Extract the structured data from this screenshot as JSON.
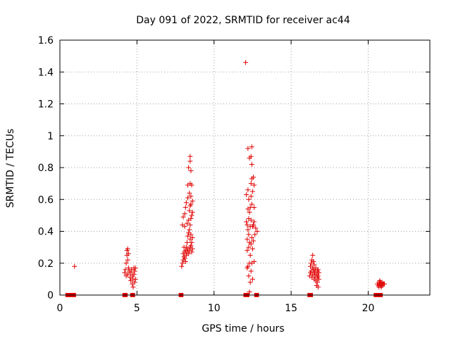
{
  "chart_data": {
    "type": "scatter",
    "title": "Day 091 of 2022, SRMTID for receiver ac44",
    "xlabel": "GPS time / hours",
    "ylabel": "SRMTID / TECUs",
    "xlim": [
      0,
      24
    ],
    "ylim": [
      0,
      1.6
    ],
    "xticks": [
      0,
      5,
      10,
      15,
      20
    ],
    "yticks": [
      0,
      0.2,
      0.4,
      0.6,
      0.8,
      1,
      1.2,
      1.4,
      1.6
    ],
    "xtick_labels": [
      "0",
      "5",
      "10",
      "15",
      "20"
    ],
    "ytick_labels": [
      "0",
      "0.2",
      "0.4",
      "0.6",
      "0.8",
      "1",
      "1.2",
      "1.4",
      "1.6"
    ],
    "grid": true,
    "color": "#e00000",
    "marker": "plus",
    "series": [
      {
        "points": [
          [
            0.95,
            0.18
          ],
          [
            4.2,
            0.14
          ],
          [
            4.25,
            0.16
          ],
          [
            4.3,
            0.12
          ],
          [
            4.3,
            0.2
          ],
          [
            4.35,
            0.25
          ],
          [
            4.35,
            0.28
          ],
          [
            4.4,
            0.29
          ],
          [
            4.4,
            0.22
          ],
          [
            4.4,
            0.13
          ],
          [
            4.45,
            0.17
          ],
          [
            4.45,
            0.26
          ],
          [
            4.5,
            0.15
          ],
          [
            4.55,
            0.11
          ],
          [
            4.6,
            0.09
          ],
          [
            4.6,
            0.14
          ],
          [
            4.65,
            0.16
          ],
          [
            4.7,
            0.07
          ],
          [
            4.7,
            0.12
          ],
          [
            4.75,
            0.1
          ],
          [
            4.75,
            0.05
          ],
          [
            4.8,
            0.17
          ],
          [
            4.8,
            0.13
          ],
          [
            4.85,
            0.08
          ],
          [
            4.85,
            0.15
          ],
          [
            4.9,
            0.1
          ],
          [
            4.9,
            0.17
          ],
          [
            7.9,
            0.18
          ],
          [
            7.95,
            0.2
          ],
          [
            7.95,
            0.44
          ],
          [
            8.0,
            0.22
          ],
          [
            8.0,
            0.49
          ],
          [
            8.0,
            0.26
          ],
          [
            8.05,
            0.24
          ],
          [
            8.05,
            0.3
          ],
          [
            8.1,
            0.23
          ],
          [
            8.1,
            0.27
          ],
          [
            8.1,
            0.43
          ],
          [
            8.1,
            0.51
          ],
          [
            8.15,
            0.21
          ],
          [
            8.15,
            0.28
          ],
          [
            8.15,
            0.55
          ],
          [
            8.2,
            0.25
          ],
          [
            8.2,
            0.3
          ],
          [
            8.2,
            0.58
          ],
          [
            8.25,
            0.27
          ],
          [
            8.25,
            0.33
          ],
          [
            8.25,
            0.45
          ],
          [
            8.3,
            0.29
          ],
          [
            8.3,
            0.37
          ],
          [
            8.3,
            0.61
          ],
          [
            8.3,
            0.69
          ],
          [
            8.35,
            0.26
          ],
          [
            8.35,
            0.39
          ],
          [
            8.35,
            0.47
          ],
          [
            8.35,
            0.8
          ],
          [
            8.4,
            0.28
          ],
          [
            8.4,
            0.41
          ],
          [
            8.4,
            0.53
          ],
          [
            8.4,
            0.64
          ],
          [
            8.45,
            0.3
          ],
          [
            8.45,
            0.35
          ],
          [
            8.45,
            0.44
          ],
          [
            8.45,
            0.56
          ],
          [
            8.45,
            0.7
          ],
          [
            8.45,
            0.84
          ],
          [
            8.45,
            0.87
          ],
          [
            8.5,
            0.31
          ],
          [
            8.5,
            0.38
          ],
          [
            8.5,
            0.48
          ],
          [
            8.5,
            0.57
          ],
          [
            8.5,
            0.62
          ],
          [
            8.5,
            0.78
          ],
          [
            8.55,
            0.27
          ],
          [
            8.55,
            0.33
          ],
          [
            8.55,
            0.5
          ],
          [
            8.55,
            0.69
          ],
          [
            8.6,
            0.29
          ],
          [
            8.6,
            0.36
          ],
          [
            8.6,
            0.52
          ],
          [
            8.6,
            0.59
          ],
          [
            12.05,
            1.46
          ],
          [
            12.1,
            0.46
          ],
          [
            12.1,
            0.63
          ],
          [
            12.15,
            0.17
          ],
          [
            12.15,
            0.28
          ],
          [
            12.15,
            0.35
          ],
          [
            12.15,
            0.44
          ],
          [
            12.2,
            0.18
          ],
          [
            12.2,
            0.41
          ],
          [
            12.2,
            0.54
          ],
          [
            12.2,
            0.66
          ],
          [
            12.2,
            0.92
          ],
          [
            12.25,
            0.12
          ],
          [
            12.25,
            0.3
          ],
          [
            12.25,
            0.38
          ],
          [
            12.25,
            0.48
          ],
          [
            12.25,
            0.6
          ],
          [
            12.3,
            0.02
          ],
          [
            12.3,
            0.2
          ],
          [
            12.3,
            0.33
          ],
          [
            12.3,
            0.52
          ],
          [
            12.3,
            0.86
          ],
          [
            12.35,
            0.08
          ],
          [
            12.35,
            0.25
          ],
          [
            12.35,
            0.43
          ],
          [
            12.35,
            0.55
          ],
          [
            12.4,
            0.15
          ],
          [
            12.4,
            0.32
          ],
          [
            12.4,
            0.47
          ],
          [
            12.4,
            0.62
          ],
          [
            12.4,
            0.7
          ],
          [
            12.4,
            0.87
          ],
          [
            12.45,
            0.2
          ],
          [
            12.45,
            0.36
          ],
          [
            12.45,
            0.57
          ],
          [
            12.45,
            0.73
          ],
          [
            12.45,
            0.82
          ],
          [
            12.45,
            0.93
          ],
          [
            12.5,
            0.1
          ],
          [
            12.5,
            0.29
          ],
          [
            12.5,
            0.43
          ],
          [
            12.5,
            0.65
          ],
          [
            12.55,
            0.34
          ],
          [
            12.55,
            0.44
          ],
          [
            12.55,
            0.74
          ],
          [
            12.6,
            0.21
          ],
          [
            12.6,
            0.46
          ],
          [
            12.6,
            0.55
          ],
          [
            12.6,
            0.69
          ],
          [
            12.65,
            0.38
          ],
          [
            12.7,
            0.42
          ],
          [
            12.8,
            0.4
          ],
          [
            16.2,
            0.12
          ],
          [
            16.25,
            0.14
          ],
          [
            16.25,
            0.18
          ],
          [
            16.3,
            0.2
          ],
          [
            16.3,
            0.15
          ],
          [
            16.35,
            0.22
          ],
          [
            16.35,
            0.11
          ],
          [
            16.4,
            0.25
          ],
          [
            16.4,
            0.17
          ],
          [
            16.4,
            0.13
          ],
          [
            16.45,
            0.21
          ],
          [
            16.45,
            0.16
          ],
          [
            16.5,
            0.19
          ],
          [
            16.5,
            0.1
          ],
          [
            16.5,
            0.14
          ],
          [
            16.55,
            0.15
          ],
          [
            16.55,
            0.12
          ],
          [
            16.6,
            0.17
          ],
          [
            16.6,
            0.09
          ],
          [
            16.65,
            0.13
          ],
          [
            16.65,
            0.06
          ],
          [
            16.7,
            0.11
          ],
          [
            16.7,
            0.15
          ],
          [
            16.7,
            0.08
          ],
          [
            16.75,
            0.12
          ],
          [
            16.75,
            0.05
          ],
          [
            16.75,
            0.16
          ],
          [
            16.8,
            0.1
          ],
          [
            16.8,
            0.14
          ],
          [
            20.6,
            0.07
          ],
          [
            20.65,
            0.06
          ],
          [
            20.7,
            0.08
          ],
          [
            20.7,
            0.05
          ],
          [
            20.75,
            0.07
          ],
          [
            20.75,
            0.09
          ],
          [
            20.8,
            0.06
          ],
          [
            20.8,
            0.08
          ],
          [
            20.85,
            0.07
          ],
          [
            20.85,
            0.05
          ],
          [
            20.9,
            0.08
          ],
          [
            20.9,
            0.06
          ],
          [
            20.95,
            0.07
          ],
          [
            21.0,
            0.07
          ],
          [
            21.05,
            0.07
          ]
        ]
      }
    ],
    "baseline_segments": [
      [
        0.45,
        0.95
      ],
      [
        4.15,
        4.3
      ],
      [
        4.65,
        4.78
      ],
      [
        7.8,
        7.92
      ],
      [
        12.0,
        12.2
      ],
      [
        12.7,
        12.82
      ],
      [
        16.15,
        16.32
      ],
      [
        20.45,
        20.85
      ]
    ]
  }
}
